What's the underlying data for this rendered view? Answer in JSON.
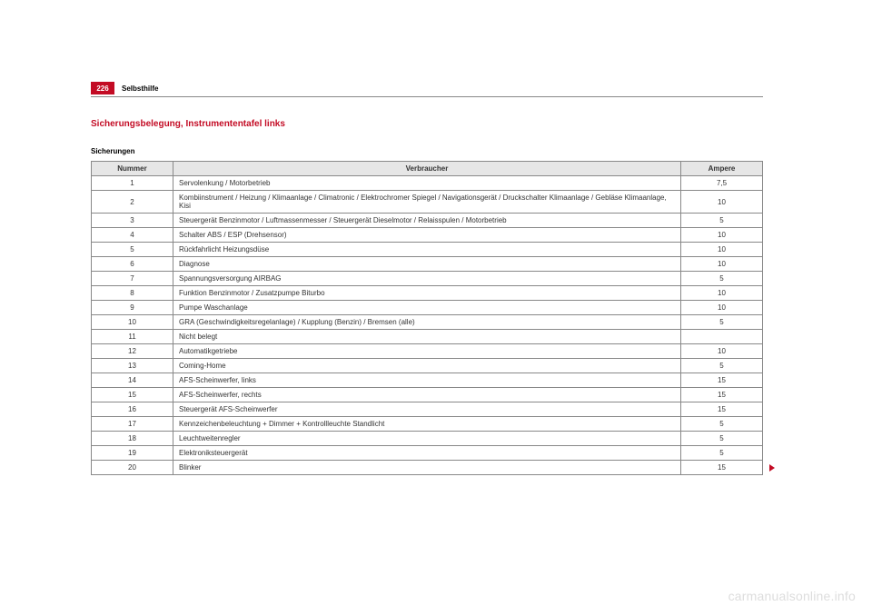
{
  "page": {
    "number": "226",
    "chapter": "Selbsthilfe",
    "section_title": "Sicherungsbelegung, Instrumententafel links",
    "subheading": "Sicherungen"
  },
  "table": {
    "headers": {
      "number": "Nummer",
      "consumer": "Verbraucher",
      "ampere": "Ampere"
    },
    "rows": [
      {
        "num": "1",
        "desc": "Servolenkung / Motorbetrieb",
        "amp": "7,5"
      },
      {
        "num": "2",
        "desc": "Kombiinstrument / Heizung / Klimaanlage / Climatronic / Elektrochromer Spiegel / Navigationsgerät / Druckschalter Klimaanlage / Gebläse Klimaanlage, Kisi",
        "amp": "10"
      },
      {
        "num": "3",
        "desc": "Steuergerät Benzinmotor / Luftmassenmesser / Steuergerät Dieselmotor / Relaisspulen / Motorbetrieb",
        "amp": "5"
      },
      {
        "num": "4",
        "desc": "Schalter ABS / ESP (Drehsensor)",
        "amp": "10"
      },
      {
        "num": "5",
        "desc": "Rückfahrlicht Heizungsdüse",
        "amp": "10"
      },
      {
        "num": "6",
        "desc": "Diagnose",
        "amp": "10"
      },
      {
        "num": "7",
        "desc": "Spannungsversorgung AIRBAG",
        "amp": "5"
      },
      {
        "num": "8",
        "desc": "Funktion Benzinmotor / Zusatzpumpe Biturbo",
        "amp": "10"
      },
      {
        "num": "9",
        "desc": "Pumpe Waschanlage",
        "amp": "10"
      },
      {
        "num": "10",
        "desc": "GRA (Geschwindigkeitsregelanlage) / Kupplung (Benzin) / Bremsen (alle)",
        "amp": "5"
      },
      {
        "num": "11",
        "desc": "Nicht belegt",
        "amp": ""
      },
      {
        "num": "12",
        "desc": "Automatikgetriebe",
        "amp": "10"
      },
      {
        "num": "13",
        "desc": "Coming-Home",
        "amp": "5"
      },
      {
        "num": "14",
        "desc": "AFS-Scheinwerfer, links",
        "amp": "15"
      },
      {
        "num": "15",
        "desc": "AFS-Scheinwerfer, rechts",
        "amp": "15"
      },
      {
        "num": "16",
        "desc": "Steuergerät AFS-Scheinwerfer",
        "amp": "15"
      },
      {
        "num": "17",
        "desc": "Kennzeichenbeleuchtung + Dimmer + Kontrollleuchte Standlicht",
        "amp": "5"
      },
      {
        "num": "18",
        "desc": "Leuchtweitenregler",
        "amp": "5"
      },
      {
        "num": "19",
        "desc": "Elektroniksteuergerät",
        "amp": "5"
      },
      {
        "num": "20",
        "desc": "Blinker",
        "amp": "15"
      }
    ]
  },
  "watermark": "carmanualsonline.info"
}
